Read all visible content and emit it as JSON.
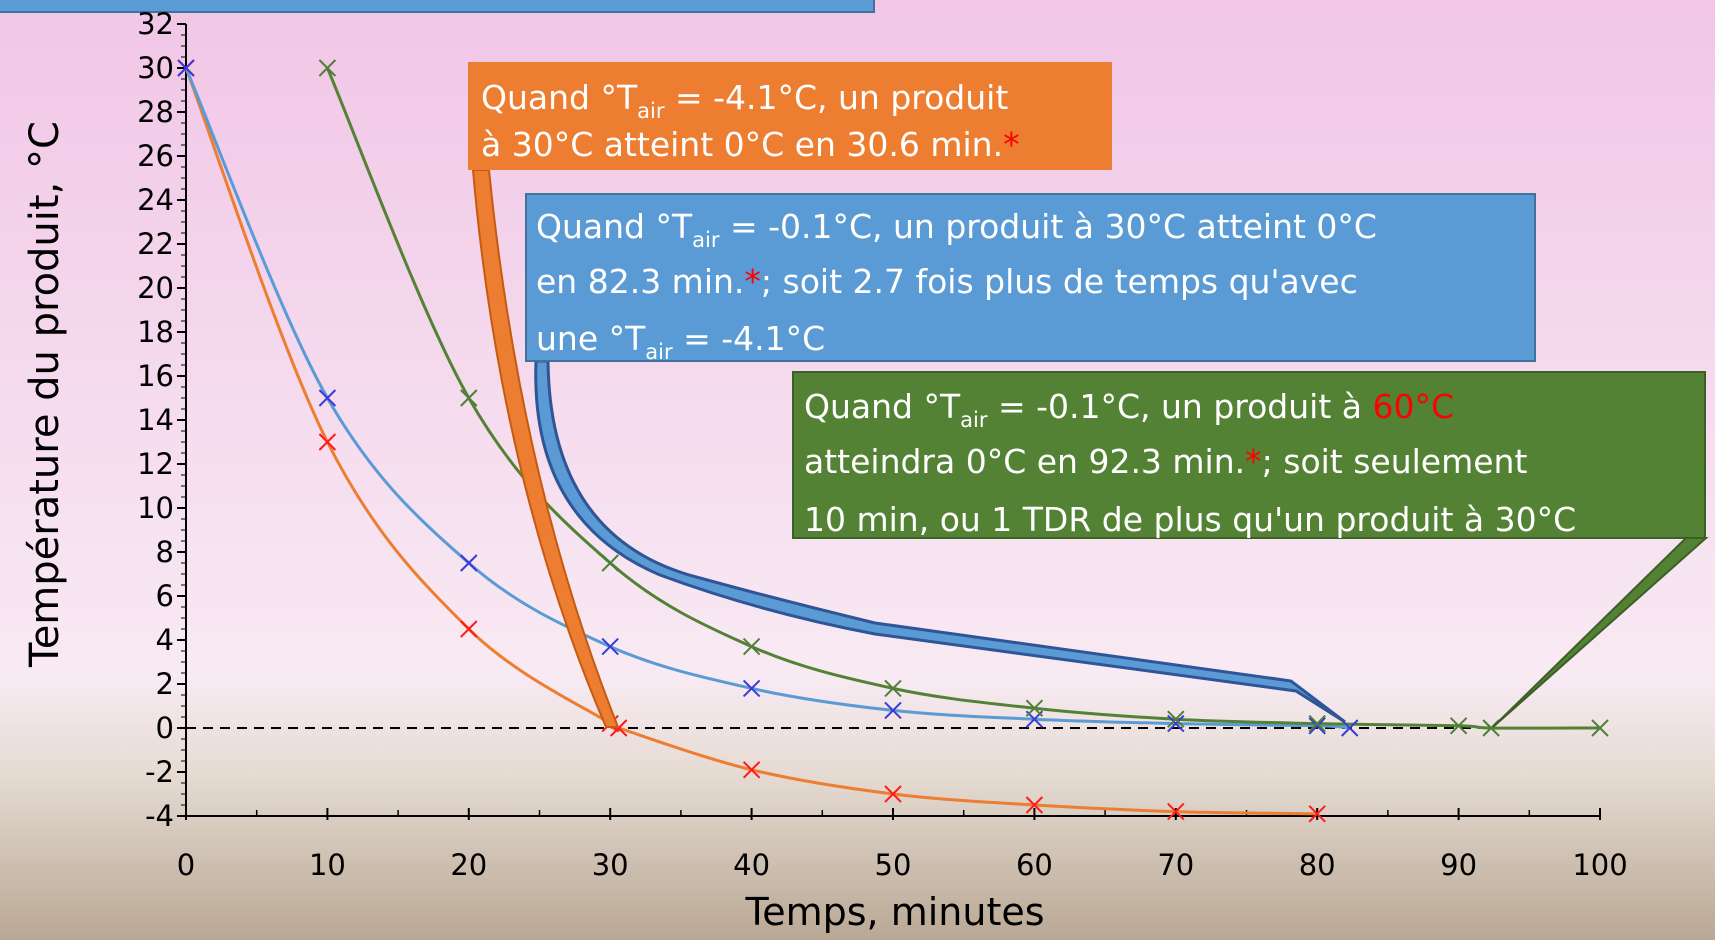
{
  "chart_data": {
    "type": "line",
    "xlabel": "Temps, minutes",
    "ylabel": "Température du produit, °C",
    "xlim": [
      0,
      100
    ],
    "xticks": [
      0,
      10,
      20,
      30,
      40,
      50,
      60,
      70,
      80,
      90,
      100
    ],
    "ylim": [
      -4,
      32
    ],
    "yticks": [
      -4,
      -2,
      0,
      2,
      4,
      6,
      8,
      10,
      12,
      14,
      16,
      18,
      20,
      22,
      24,
      26,
      28,
      30,
      32
    ],
    "hline": 0,
    "series": [
      {
        "color": "#ED7D31",
        "marker_color": "#ff1a1a",
        "x": [
          0,
          10,
          20,
          30,
          30.6,
          40,
          50,
          60,
          70,
          80
        ],
        "values": [
          30,
          13,
          4.5,
          0.2,
          0,
          -1.9,
          -3,
          -3.5,
          -3.8,
          -3.9
        ]
      },
      {
        "color": "#5B9BD5",
        "marker_color": "#3a3ad8",
        "x": [
          0,
          10,
          20,
          30,
          40,
          50,
          60,
          70,
          80,
          82.3
        ],
        "values": [
          30,
          15,
          7.5,
          3.7,
          1.8,
          0.8,
          0.4,
          0.2,
          0.1,
          0
        ]
      },
      {
        "color": "#548235",
        "marker_color": "#4f7f3a",
        "x": [
          10,
          20,
          30,
          40,
          50,
          60,
          70,
          80,
          90,
          92.3,
          100
        ],
        "values": [
          30,
          15,
          7.5,
          3.7,
          1.8,
          0.9,
          0.4,
          0.2,
          0.1,
          0,
          0
        ]
      }
    ],
    "annotations": [
      {
        "color": "#ED7D31",
        "lines": [
          [
            "Quand °T",
            {
              "text": "air",
              "style": "sub"
            },
            " = -4.1°C, un produit"
          ],
          [
            "à 30°C atteint 0°C en 30.6 min.",
            {
              "text": "*",
              "style": "red"
            }
          ]
        ]
      },
      {
        "color": "#5B9BD5",
        "lines": [
          [
            "Quand °T",
            {
              "text": "air",
              "style": "sub"
            },
            " = -0.1°C, un produit à 30°C atteint 0°C"
          ],
          [
            "en 82.3 min.",
            {
              "text": "*",
              "style": "red"
            },
            "; soit 2.7 fois plus de temps qu'avec"
          ],
          [
            "une °T",
            {
              "text": "air",
              "style": "sub"
            },
            " = -4.1°C"
          ]
        ]
      },
      {
        "color": "#548235",
        "lines": [
          [
            "Quand °T",
            {
              "text": "air",
              "style": "sub"
            },
            " = -0.1°C, un produit à ",
            {
              "text": "60°C",
              "style": "red"
            }
          ],
          [
            "atteindra 0°C en 92.3 min.",
            {
              "text": "*",
              "style": "red"
            },
            "; soit seulement"
          ],
          [
            "10 min, ou 1 TDR de plus qu'un produit à 30°C"
          ]
        ]
      }
    ]
  }
}
